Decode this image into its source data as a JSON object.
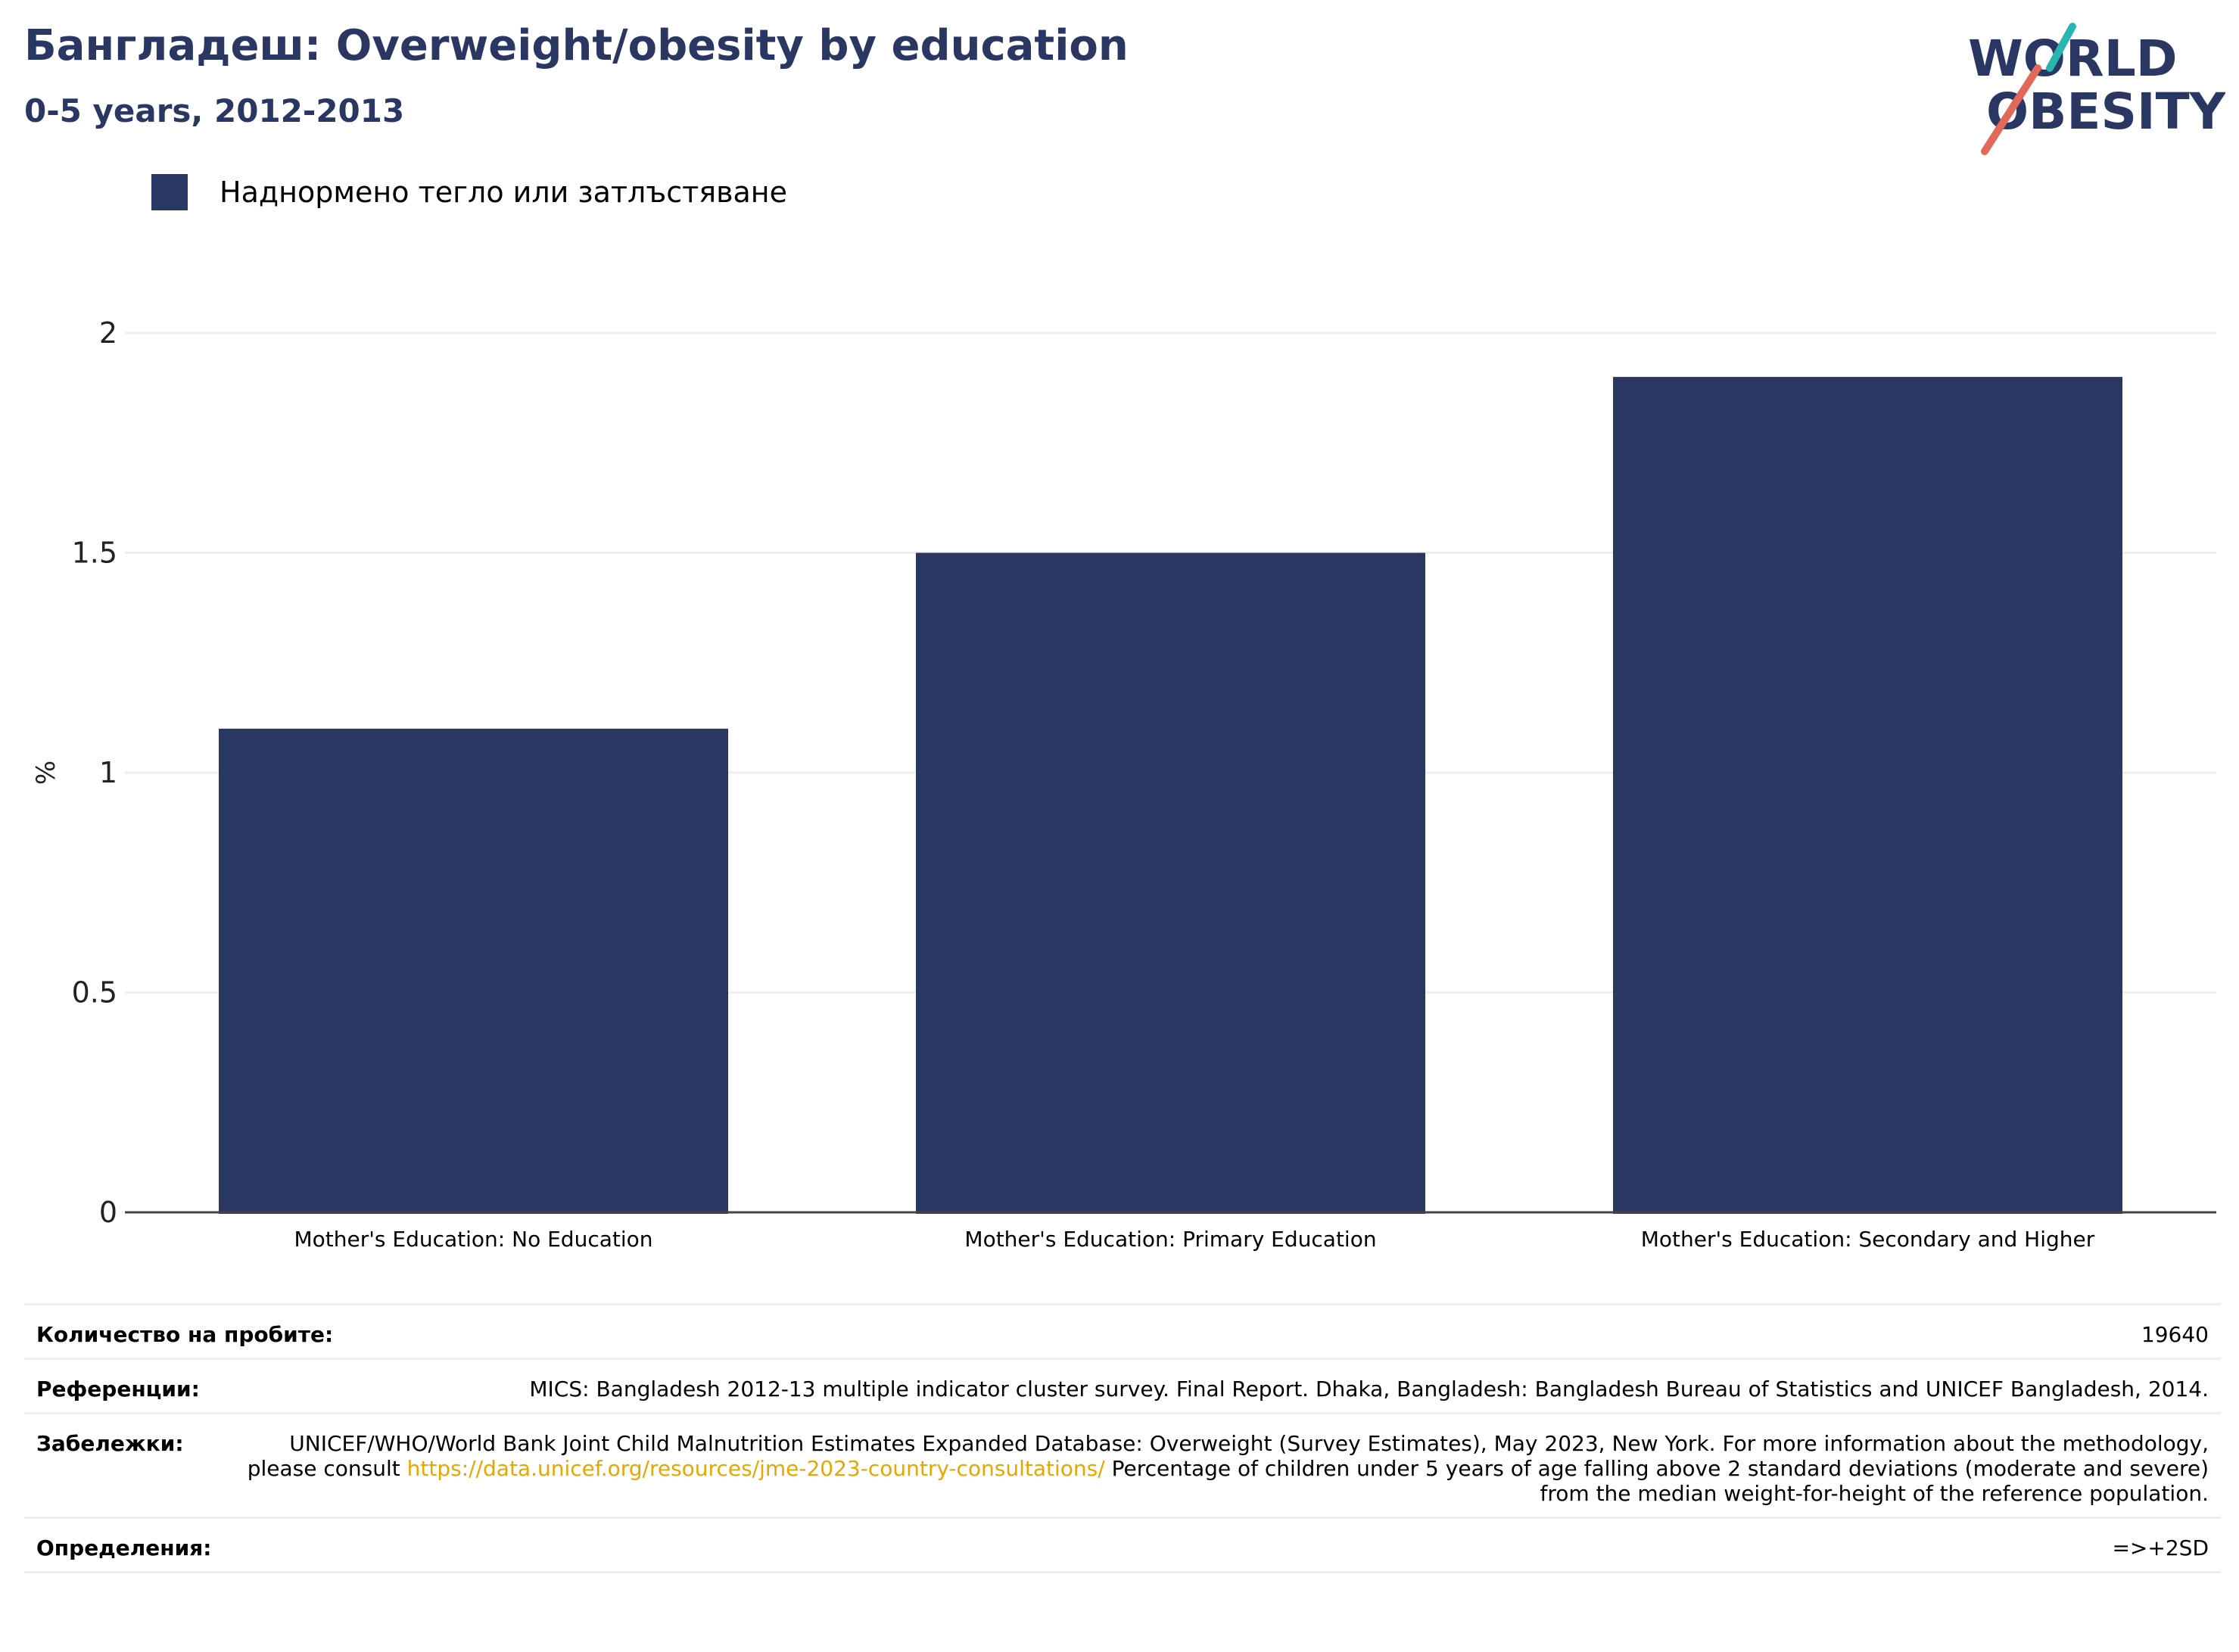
{
  "header": {
    "title": "Бангладеш: Overweight/obesity by education",
    "subtitle": "0-5 years, 2012-2013"
  },
  "logo": {
    "line1": "WORLD",
    "line2": "OBESITY",
    "colors": {
      "text": "#2a3762",
      "teal": "#2bb5b1",
      "coral": "#e2685a"
    }
  },
  "legend": {
    "label": "Наднормено тегло или затлъстяване",
    "color": "#2a3762"
  },
  "chart_data": {
    "type": "bar",
    "categories": [
      "Mother's Education: No Education",
      "Mother's Education: Primary Education",
      "Mother's Education: Secondary and Higher"
    ],
    "series": [
      {
        "name": "Наднормено тегло или затлъстяване",
        "values": [
          1.1,
          1.5,
          1.9
        ],
        "color": "#2a3762"
      }
    ],
    "ylabel": "%",
    "ylim": [
      0,
      2
    ],
    "yticks": [
      "0",
      "0.5",
      "1",
      "1.5",
      "2"
    ],
    "grid": true
  },
  "info": {
    "sample_label": "Количество на пробите:",
    "sample_value": "19640",
    "references_label": "Референции:",
    "references_value": "MICS: Bangladesh 2012-13 multiple indicator cluster survey. Final Report. Dhaka, Bangladesh: Bangladesh Bureau of Statistics and UNICEF Bangladesh, 2014.",
    "notes_label": "Забележки:",
    "notes_before": "UNICEF/WHO/World Bank Joint Child Malnutrition Estimates Expanded Database: Overweight (Survey Estimates), May 2023, New York. For more information about the methodology, please consult ",
    "notes_link": "https://data.unicef.org/resources/jme-2023-country-consultations/",
    "notes_after": " Percentage of children under 5 years of age falling above 2 standard deviations (moderate and severe) from the median weight-for-height of the reference population.",
    "definitions_label": "Определения:",
    "definitions_value": "=>+2SD"
  }
}
